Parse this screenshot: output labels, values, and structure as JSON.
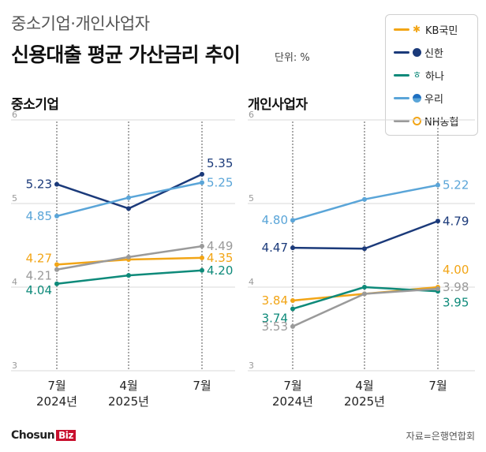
{
  "header": {
    "subtitle": "중소기업·개인사업자",
    "title": "신용대출 평균 가산금리 추이",
    "unit": "단위: %"
  },
  "legend": [
    {
      "name": "KB국민",
      "color": "#f2a516",
      "icon": "kb-star-icon"
    },
    {
      "name": "신한",
      "color": "#1b3a7a",
      "icon": "shinhan-icon"
    },
    {
      "name": "하나",
      "color": "#0e8a7a",
      "icon": "hana-icon"
    },
    {
      "name": "우리",
      "color": "#5aa5d8",
      "icon": "woori-icon"
    },
    {
      "name": "NH농협",
      "color": "#9a9a9a",
      "icon": "nh-icon"
    }
  ],
  "footer": {
    "brand_main": "Chosun",
    "brand_tag": "Biz",
    "source": "자료=은행연합회"
  },
  "chart_data": [
    {
      "type": "line",
      "title": "중소기업",
      "categories": [
        "7월\n2024년",
        "4월\n2025년",
        "7월"
      ],
      "ylim": [
        3,
        6
      ],
      "yticks": [
        3,
        4,
        5,
        6
      ],
      "grid": true,
      "series": [
        {
          "name": "KB국민",
          "color": "#f2a516",
          "values": [
            4.27,
            4.33,
            4.35
          ],
          "labels": [
            "4.27",
            "",
            "4.35"
          ]
        },
        {
          "name": "신한",
          "color": "#1b3a7a",
          "values": [
            5.23,
            4.94,
            5.35
          ],
          "labels": [
            "5.23",
            "",
            "5.35"
          ]
        },
        {
          "name": "하나",
          "color": "#0e8a7a",
          "values": [
            4.04,
            4.14,
            4.2
          ],
          "labels": [
            "4.04",
            "",
            "4.20"
          ]
        },
        {
          "name": "우리",
          "color": "#5aa5d8",
          "values": [
            4.85,
            5.07,
            5.25
          ],
          "labels": [
            "4.85",
            "",
            "5.25"
          ]
        },
        {
          "name": "NH농협",
          "color": "#9a9a9a",
          "values": [
            4.21,
            4.36,
            4.49
          ],
          "labels": [
            "4.21",
            "",
            "4.49"
          ]
        }
      ]
    },
    {
      "type": "line",
      "title": "개인사업자",
      "categories": [
        "7월\n2024년",
        "4월\n2025년",
        "7월"
      ],
      "ylim": [
        3,
        6
      ],
      "yticks": [
        3,
        4,
        5,
        6
      ],
      "grid": true,
      "series": [
        {
          "name": "KB국민",
          "color": "#f2a516",
          "values": [
            3.84,
            3.92,
            4.0
          ],
          "labels": [
            "3.84",
            "",
            "4.00"
          ]
        },
        {
          "name": "신한",
          "color": "#1b3a7a",
          "values": [
            4.47,
            4.46,
            4.79
          ],
          "labels": [
            "4.47",
            "",
            "4.79"
          ]
        },
        {
          "name": "하나",
          "color": "#0e8a7a",
          "values": [
            3.74,
            4.0,
            3.95
          ],
          "labels": [
            "3.74",
            "",
            "3.95"
          ]
        },
        {
          "name": "우리",
          "color": "#5aa5d8",
          "values": [
            4.8,
            5.05,
            5.22
          ],
          "labels": [
            "4.80",
            "",
            "5.22"
          ]
        },
        {
          "name": "NH농협",
          "color": "#9a9a9a",
          "values": [
            3.53,
            3.92,
            3.98
          ],
          "labels": [
            "3.53",
            "",
            "3.98"
          ]
        }
      ]
    }
  ]
}
